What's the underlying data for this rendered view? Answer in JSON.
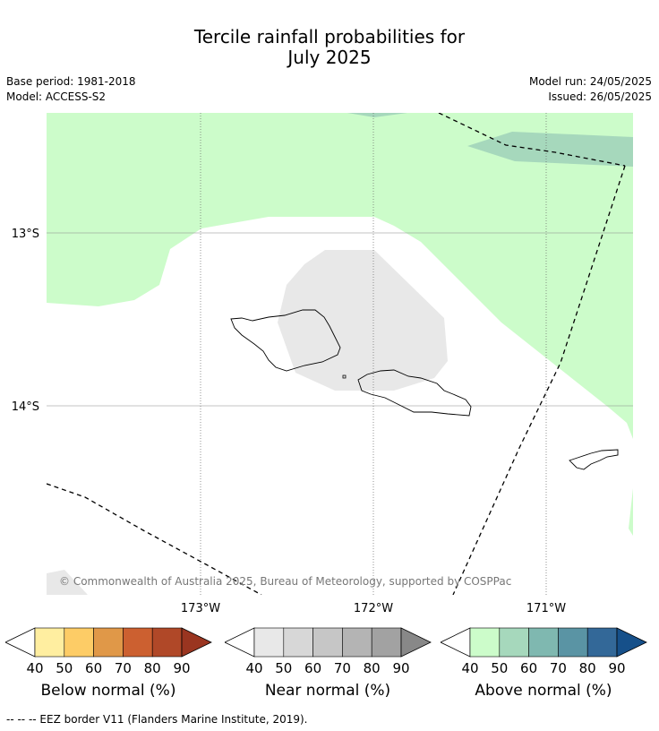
{
  "title_line1": "Tercile rainfall probabilities for",
  "title_line2": "July 2025",
  "base_period": "Base period: 1981-2018",
  "model": "Model: ACCESS-S2",
  "model_run": "Model run: 24/05/2025",
  "issued": "Issued: 26/05/2025",
  "copyright": "© Commonwealth of Australia 2025, Bureau of Meteorology, supported by COSPPac",
  "lat_labels": [
    "13°S",
    "14°S"
  ],
  "lon_labels": [
    "173°W",
    "172°W",
    "171°W"
  ],
  "legends": [
    {
      "label": "Below normal (%)",
      "ticks": [
        "40",
        "50",
        "60",
        "70",
        "80",
        "90"
      ],
      "colors": [
        "#ffeea0",
        "#fdcc66",
        "#e09848",
        "#cc6030",
        "#b04828",
        "#9a3520"
      ]
    },
    {
      "label": "Near normal (%)",
      "ticks": [
        "40",
        "50",
        "60",
        "70",
        "80",
        "90"
      ],
      "colors": [
        "#e8e8e8",
        "#d7d7d7",
        "#c6c6c6",
        "#b4b4b4",
        "#a2a2a2",
        "#888888"
      ]
    },
    {
      "label": "Above normal (%)",
      "ticks": [
        "40",
        "50",
        "60",
        "70",
        "80",
        "90"
      ],
      "colors": [
        "#ccfcca",
        "#a6d8bc",
        "#7fb8b0",
        "#5a94a4",
        "#336898",
        "#16508a"
      ]
    }
  ],
  "footnote": "-- -- -- EEZ border V11 (Flanders Marine Institute, 2019)."
}
